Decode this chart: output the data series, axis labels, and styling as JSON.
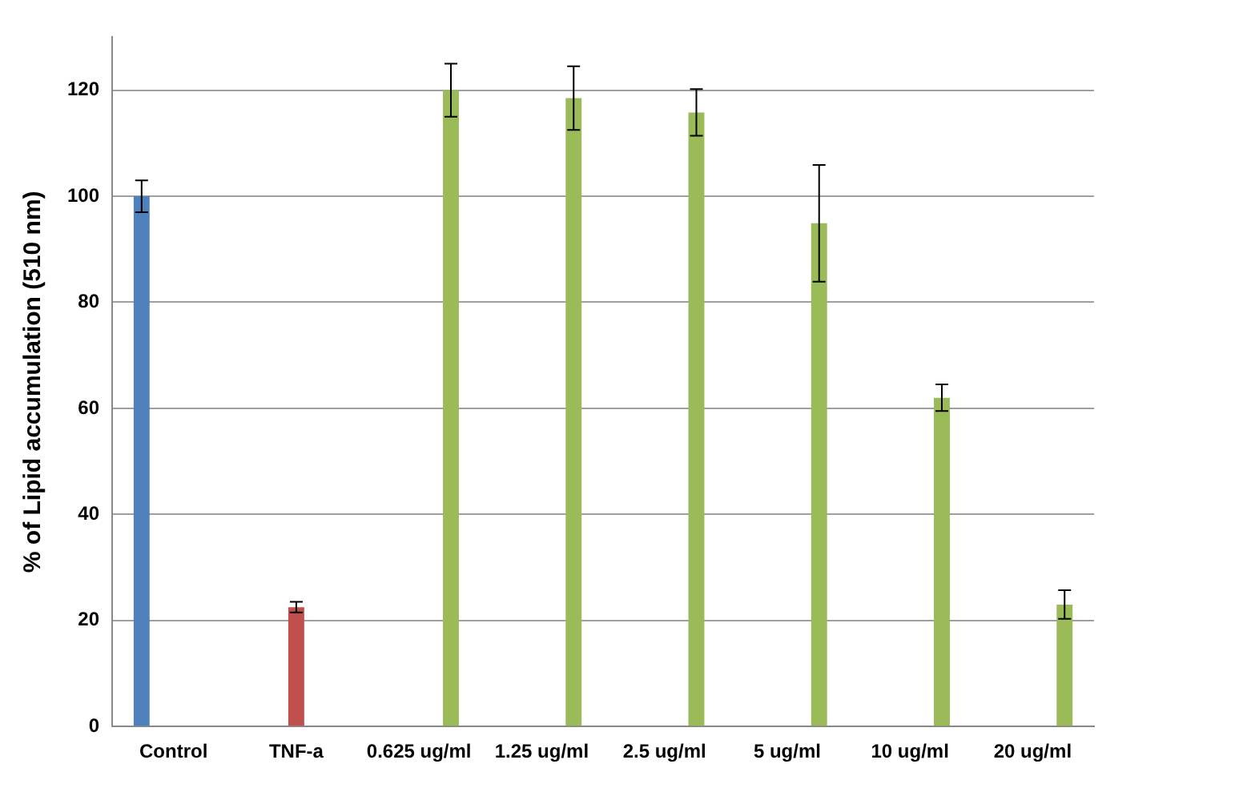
{
  "chart_data": {
    "type": "bar",
    "ylabel": "% of Lipid accumulation (510 nm)",
    "categories": [
      "Control",
      "TNF-a",
      "0.625 ug/ml",
      "1.25 ug/ml",
      "2.5 ug/ml",
      "5 ug/ml",
      "10 ug/ml",
      "20 ug/ml"
    ],
    "series": [
      {
        "color": "#4f81bd",
        "values": [
          100,
          null,
          null,
          null,
          null,
          null,
          null,
          null
        ],
        "errors": [
          3,
          null,
          null,
          null,
          null,
          null,
          null,
          null
        ]
      },
      {
        "color": "#c0504d",
        "values": [
          null,
          22.5,
          null,
          null,
          null,
          null,
          null,
          null
        ],
        "errors": [
          null,
          1,
          null,
          null,
          null,
          null,
          null,
          null
        ]
      },
      {
        "color": "#9bbb59",
        "values": [
          null,
          null,
          120,
          118.5,
          115.8,
          94.9,
          62,
          23
        ],
        "errors": [
          null,
          null,
          5,
          6,
          4.4,
          11,
          2.5,
          2.7
        ]
      }
    ],
    "ylim": [
      0,
      130
    ],
    "yticks": [
      0,
      20,
      40,
      60,
      80,
      100,
      120
    ],
    "grid": "y",
    "legend": false
  }
}
